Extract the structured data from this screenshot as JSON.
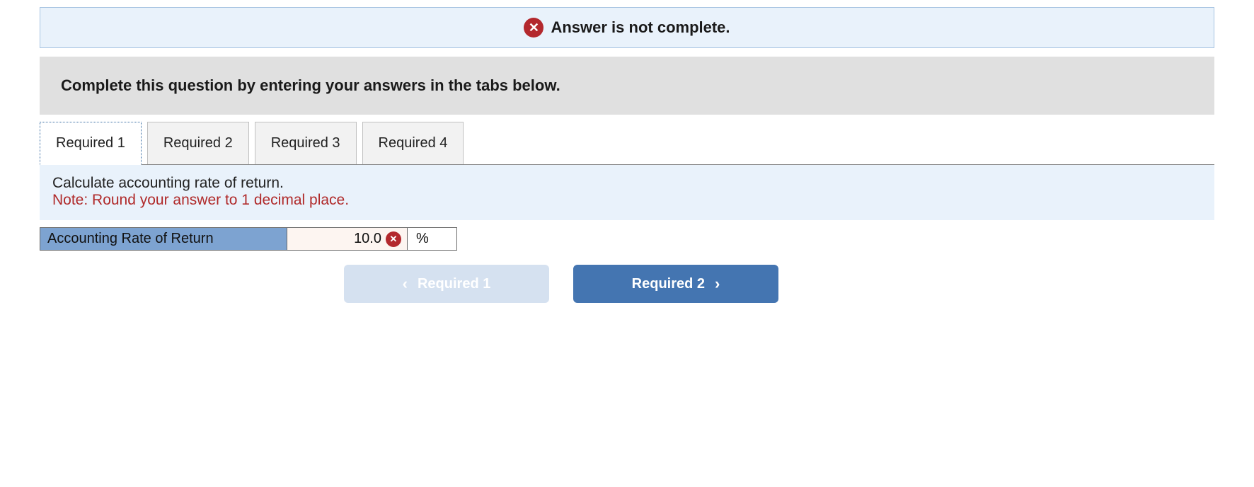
{
  "status": {
    "icon_bg": "#b3282d",
    "icon_glyph": "✕",
    "text": "Answer is not complete."
  },
  "instruction": "Complete this question by entering your answers in the tabs below.",
  "tabs": [
    {
      "label": "Required 1",
      "active": true
    },
    {
      "label": "Required 2",
      "active": false
    },
    {
      "label": "Required 3",
      "active": false
    },
    {
      "label": "Required 4",
      "active": false
    }
  ],
  "prompt": {
    "line1": "Calculate accounting rate of return.",
    "note": "Note: Round your answer to 1 decimal place."
  },
  "answer": {
    "label": "Accounting Rate of Return",
    "value": "10.0",
    "wrong_glyph": "✕",
    "unit": "%"
  },
  "nav": {
    "prev": {
      "chevron": "‹",
      "label": "Required 1"
    },
    "next": {
      "label": "Required 2",
      "chevron": "›"
    }
  },
  "colors": {
    "banner_bg": "#e9f2fb",
    "banner_border": "#a7c4e2",
    "instruction_bg": "#e0e0e0",
    "tab_bg": "#f2f2f2",
    "tab_border": "#bfbfbf",
    "tab_active_border": "#3a6ea5",
    "answer_label_bg": "#7da3d1",
    "answer_border": "#6a6a6a",
    "answer_value_bg": "#fdf5f1",
    "note_color": "#b02a2a",
    "nav_prev_bg": "#d5e1f0",
    "nav_next_bg": "#4475b1",
    "error_red": "#b3282d"
  }
}
